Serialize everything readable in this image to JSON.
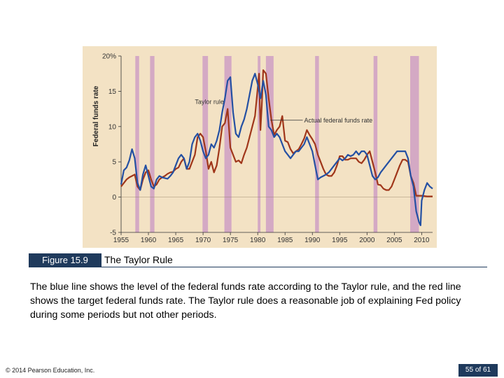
{
  "figure": {
    "number_label": "Figure 15.9",
    "title": "The Taylor Rule",
    "caption": "The blue line shows the level of the federal funds rate according to the Taylor rule, and the red line shows the target federal funds rate. The Taylor rule does a reasonable job of explaining Fed policy during some periods but not other periods."
  },
  "footer": {
    "copyright": "© 2014 Pearson Education, Inc.",
    "page": "55 of 61"
  },
  "colors": {
    "background": "#f3e2c4",
    "recession": "#d4a9c4",
    "taylor": "#2450a3",
    "actual": "#a0361a"
  },
  "chart_data": {
    "type": "line",
    "ylabel": "Federal funds rate",
    "xlim": [
      1955,
      2012
    ],
    "ylim": [
      -5,
      20
    ],
    "y_ticks": [
      {
        "value": 20,
        "label": "20%"
      },
      {
        "value": 15,
        "label": "15"
      },
      {
        "value": 10,
        "label": "10"
      },
      {
        "value": 5,
        "label": "5"
      },
      {
        "value": 0,
        "label": "0"
      },
      {
        "value": -5,
        "label": "-5"
      }
    ],
    "x_ticks": [
      {
        "value": 1955,
        "label": "1955"
      },
      {
        "value": 1960,
        "label": "1960"
      },
      {
        "value": 1965,
        "label": "1965"
      },
      {
        "value": 1970,
        "label": "1970"
      },
      {
        "value": 1975,
        "label": "1975"
      },
      {
        "value": 1980,
        "label": "1980"
      },
      {
        "value": 1985,
        "label": "1985"
      },
      {
        "value": 1990,
        "label": "1990"
      },
      {
        "value": 1995,
        "label": "1995"
      },
      {
        "value": 2000,
        "label": "2000"
      },
      {
        "value": 2005,
        "label": "2005"
      },
      {
        "value": 2010,
        "label": "2010"
      }
    ],
    "recessions": [
      [
        1957.6,
        1958.3
      ],
      [
        1960.3,
        1961.1
      ],
      [
        1969.9,
        1970.9
      ],
      [
        1973.9,
        1975.2
      ],
      [
        1980.0,
        1980.5
      ],
      [
        1981.5,
        1982.9
      ],
      [
        1990.5,
        1991.2
      ],
      [
        2001.2,
        2001.9
      ],
      [
        2007.9,
        2009.5
      ]
    ],
    "annotations": [
      {
        "text": "Taylor rule",
        "x": 1968.5,
        "y": 13.2
      },
      {
        "text": "Actual federal funds rate",
        "x": 1988.5,
        "y": 10.6
      }
    ],
    "series": [
      {
        "name": "Taylor rule",
        "color": "#2450a3",
        "points": [
          [
            1955.0,
            1.8
          ],
          [
            1955.5,
            3.8
          ],
          [
            1956.0,
            4.2
          ],
          [
            1956.5,
            5.2
          ],
          [
            1957.0,
            6.8
          ],
          [
            1957.5,
            5.5
          ],
          [
            1958.0,
            2.0
          ],
          [
            1958.5,
            1.0
          ],
          [
            1959.0,
            3.2
          ],
          [
            1959.5,
            4.5
          ],
          [
            1960.0,
            3.0
          ],
          [
            1960.5,
            1.5
          ],
          [
            1961.0,
            1.2
          ],
          [
            1961.5,
            2.5
          ],
          [
            1962.0,
            3.0
          ],
          [
            1962.5,
            2.8
          ],
          [
            1963.0,
            2.7
          ],
          [
            1963.5,
            2.6
          ],
          [
            1964.0,
            3.0
          ],
          [
            1964.5,
            3.5
          ],
          [
            1965.0,
            4.5
          ],
          [
            1965.5,
            5.5
          ],
          [
            1966.0,
            6.0
          ],
          [
            1966.5,
            5.5
          ],
          [
            1967.0,
            4.0
          ],
          [
            1967.5,
            5.0
          ],
          [
            1968.0,
            7.5
          ],
          [
            1968.5,
            8.5
          ],
          [
            1969.0,
            9.0
          ],
          [
            1969.5,
            8.0
          ],
          [
            1970.0,
            6.5
          ],
          [
            1970.5,
            5.5
          ],
          [
            1971.0,
            6.0
          ],
          [
            1971.5,
            7.5
          ],
          [
            1972.0,
            7.0
          ],
          [
            1972.5,
            8.0
          ],
          [
            1973.0,
            9.5
          ],
          [
            1973.5,
            12.0
          ],
          [
            1974.0,
            14.0
          ],
          [
            1974.5,
            16.5
          ],
          [
            1975.0,
            17.0
          ],
          [
            1975.5,
            12.0
          ],
          [
            1976.0,
            9.0
          ],
          [
            1976.5,
            8.5
          ],
          [
            1977.0,
            10.0
          ],
          [
            1977.5,
            11.0
          ],
          [
            1978.0,
            12.5
          ],
          [
            1978.5,
            14.5
          ],
          [
            1979.0,
            16.5
          ],
          [
            1979.5,
            17.5
          ],
          [
            1980.0,
            16.0
          ],
          [
            1980.5,
            14.0
          ],
          [
            1981.0,
            16.5
          ],
          [
            1981.5,
            14.5
          ],
          [
            1982.0,
            10.0
          ],
          [
            1982.5,
            9.5
          ],
          [
            1983.0,
            8.5
          ],
          [
            1983.5,
            9.0
          ],
          [
            1984.0,
            8.5
          ],
          [
            1984.5,
            7.5
          ],
          [
            1985.0,
            6.5
          ],
          [
            1985.5,
            6.0
          ],
          [
            1986.0,
            5.5
          ],
          [
            1986.5,
            6.0
          ],
          [
            1987.0,
            6.5
          ],
          [
            1987.5,
            6.5
          ],
          [
            1988.0,
            7.0
          ],
          [
            1988.5,
            7.5
          ],
          [
            1989.0,
            8.5
          ],
          [
            1989.5,
            7.5
          ],
          [
            1990.0,
            6.5
          ],
          [
            1990.5,
            4.5
          ],
          [
            1991.0,
            2.5
          ],
          [
            1991.5,
            2.8
          ],
          [
            1992.0,
            3.0
          ],
          [
            1992.5,
            3.2
          ],
          [
            1993.0,
            3.5
          ],
          [
            1993.5,
            4.0
          ],
          [
            1994.0,
            4.5
          ],
          [
            1994.5,
            5.0
          ],
          [
            1995.0,
            5.5
          ],
          [
            1995.5,
            5.2
          ],
          [
            1996.0,
            5.5
          ],
          [
            1996.5,
            6.0
          ],
          [
            1997.0,
            5.8
          ],
          [
            1997.5,
            6.0
          ],
          [
            1998.0,
            6.5
          ],
          [
            1998.5,
            6.0
          ],
          [
            1999.0,
            6.5
          ],
          [
            1999.5,
            6.5
          ],
          [
            2000.0,
            6.0
          ],
          [
            2000.5,
            4.5
          ],
          [
            2001.0,
            3.0
          ],
          [
            2001.5,
            2.5
          ],
          [
            2002.0,
            2.8
          ],
          [
            2002.5,
            3.5
          ],
          [
            2003.0,
            4.0
          ],
          [
            2003.5,
            4.5
          ],
          [
            2004.0,
            5.0
          ],
          [
            2004.5,
            5.5
          ],
          [
            2005.0,
            6.0
          ],
          [
            2005.5,
            6.5
          ],
          [
            2006.0,
            6.5
          ],
          [
            2006.5,
            6.5
          ],
          [
            2007.0,
            6.5
          ],
          [
            2007.5,
            5.5
          ],
          [
            2008.0,
            3.0
          ],
          [
            2008.5,
            1.5
          ],
          [
            2009.0,
            -2.0
          ],
          [
            2009.5,
            -3.5
          ],
          [
            2009.8,
            -4.0
          ],
          [
            2010.0,
            -0.5
          ],
          [
            2010.5,
            1.0
          ],
          [
            2011.0,
            2.0
          ],
          [
            2011.5,
            1.5
          ],
          [
            2012.0,
            1.2
          ]
        ]
      },
      {
        "name": "Actual federal funds rate",
        "color": "#a0361a",
        "points": [
          [
            1955.0,
            1.5
          ],
          [
            1955.5,
            2.0
          ],
          [
            1956.0,
            2.5
          ],
          [
            1956.5,
            2.8
          ],
          [
            1957.0,
            3.0
          ],
          [
            1957.5,
            3.2
          ],
          [
            1958.0,
            1.5
          ],
          [
            1958.5,
            1.0
          ],
          [
            1959.0,
            2.5
          ],
          [
            1959.5,
            3.5
          ],
          [
            1960.0,
            3.8
          ],
          [
            1960.5,
            2.5
          ],
          [
            1961.0,
            1.5
          ],
          [
            1961.5,
            1.8
          ],
          [
            1962.0,
            2.5
          ],
          [
            1962.5,
            2.8
          ],
          [
            1963.0,
            3.0
          ],
          [
            1963.5,
            3.3
          ],
          [
            1964.0,
            3.5
          ],
          [
            1964.5,
            3.6
          ],
          [
            1965.0,
            4.0
          ],
          [
            1965.5,
            4.2
          ],
          [
            1966.0,
            5.0
          ],
          [
            1966.5,
            5.5
          ],
          [
            1967.0,
            4.0
          ],
          [
            1967.5,
            4.0
          ],
          [
            1968.0,
            5.0
          ],
          [
            1968.5,
            6.0
          ],
          [
            1969.0,
            8.5
          ],
          [
            1969.5,
            9.0
          ],
          [
            1970.0,
            8.5
          ],
          [
            1970.5,
            6.5
          ],
          [
            1971.0,
            4.0
          ],
          [
            1971.5,
            5.0
          ],
          [
            1972.0,
            3.5
          ],
          [
            1972.5,
            4.5
          ],
          [
            1973.0,
            7.0
          ],
          [
            1973.5,
            10.0
          ],
          [
            1974.0,
            10.5
          ],
          [
            1974.5,
            12.5
          ],
          [
            1975.0,
            7.0
          ],
          [
            1975.5,
            6.0
          ],
          [
            1976.0,
            5.0
          ],
          [
            1976.5,
            5.2
          ],
          [
            1977.0,
            4.8
          ],
          [
            1977.5,
            6.0
          ],
          [
            1978.0,
            7.0
          ],
          [
            1978.5,
            8.5
          ],
          [
            1979.0,
            10.0
          ],
          [
            1979.5,
            11.5
          ],
          [
            1980.0,
            15.5
          ],
          [
            1980.25,
            17.5
          ],
          [
            1980.5,
            9.5
          ],
          [
            1980.75,
            13.0
          ],
          [
            1981.0,
            18.0
          ],
          [
            1981.5,
            17.5
          ],
          [
            1982.0,
            14.0
          ],
          [
            1982.5,
            11.0
          ],
          [
            1983.0,
            8.8
          ],
          [
            1983.5,
            9.5
          ],
          [
            1984.0,
            10.0
          ],
          [
            1984.5,
            11.5
          ],
          [
            1985.0,
            8.0
          ],
          [
            1985.5,
            7.8
          ],
          [
            1986.0,
            6.8
          ],
          [
            1986.5,
            6.2
          ],
          [
            1987.0,
            6.5
          ],
          [
            1987.5,
            6.8
          ],
          [
            1988.0,
            7.5
          ],
          [
            1988.5,
            8.3
          ],
          [
            1989.0,
            9.5
          ],
          [
            1989.5,
            8.8
          ],
          [
            1990.0,
            8.2
          ],
          [
            1990.5,
            7.5
          ],
          [
            1991.0,
            6.0
          ],
          [
            1991.5,
            5.0
          ],
          [
            1992.0,
            4.0
          ],
          [
            1992.5,
            3.2
          ],
          [
            1993.0,
            3.0
          ],
          [
            1993.5,
            3.0
          ],
          [
            1994.0,
            3.5
          ],
          [
            1994.5,
            4.5
          ],
          [
            1995.0,
            5.8
          ],
          [
            1995.5,
            5.8
          ],
          [
            1996.0,
            5.3
          ],
          [
            1996.5,
            5.3
          ],
          [
            1997.0,
            5.5
          ],
          [
            1997.5,
            5.5
          ],
          [
            1998.0,
            5.5
          ],
          [
            1998.5,
            5.0
          ],
          [
            1999.0,
            4.8
          ],
          [
            1999.5,
            5.3
          ],
          [
            2000.0,
            6.0
          ],
          [
            2000.5,
            6.5
          ],
          [
            2001.0,
            5.0
          ],
          [
            2001.5,
            3.5
          ],
          [
            2002.0,
            1.8
          ],
          [
            2002.5,
            1.7
          ],
          [
            2003.0,
            1.2
          ],
          [
            2003.5,
            1.0
          ],
          [
            2004.0,
            1.0
          ],
          [
            2004.5,
            1.5
          ],
          [
            2005.0,
            2.5
          ],
          [
            2005.5,
            3.5
          ],
          [
            2006.0,
            4.5
          ],
          [
            2006.5,
            5.3
          ],
          [
            2007.0,
            5.3
          ],
          [
            2007.5,
            5.0
          ],
          [
            2008.0,
            3.0
          ],
          [
            2008.5,
            2.0
          ],
          [
            2009.0,
            0.2
          ],
          [
            2010.0,
            0.2
          ],
          [
            2011.0,
            0.1
          ],
          [
            2012.0,
            0.1
          ]
        ]
      }
    ]
  }
}
